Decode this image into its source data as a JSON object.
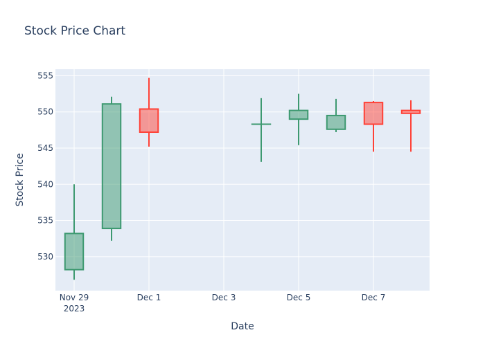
{
  "chart_data": {
    "type": "candlestick",
    "title": "Stock Price Chart",
    "xlabel": "Date",
    "ylabel": "Stock Price",
    "ylim": [
      525.3,
      555.9
    ],
    "xlim": [
      "2023-11-28T12:00",
      "2023-12-08T12:00"
    ],
    "y_ticks": [
      530,
      535,
      540,
      545,
      550,
      555
    ],
    "x_ticks": [
      {
        "date": "2023-11-29",
        "label": "Nov 29",
        "sublabel": "2023"
      },
      {
        "date": "2023-12-01",
        "label": "Dec 1",
        "sublabel": ""
      },
      {
        "date": "2023-12-03",
        "label": "Dec 3",
        "sublabel": ""
      },
      {
        "date": "2023-12-05",
        "label": "Dec 5",
        "sublabel": ""
      },
      {
        "date": "2023-12-07",
        "label": "Dec 7",
        "sublabel": ""
      }
    ],
    "grid": true,
    "colors": {
      "increasing_line": "#3d9970",
      "increasing_fill": "rgba(61,153,112,0.5)",
      "decreasing_line": "#ff4136",
      "decreasing_fill": "rgba(255,65,54,0.5)",
      "plot_bg": "#e5ecf6",
      "grid": "#ffffff",
      "text": "#2a3f5f"
    },
    "candles": [
      {
        "date": "2023-11-29",
        "open": 528.2,
        "high": 540.0,
        "low": 526.8,
        "close": 533.2
      },
      {
        "date": "2023-11-30",
        "open": 533.9,
        "high": 552.1,
        "low": 532.2,
        "close": 551.1
      },
      {
        "date": "2023-12-01",
        "open": 550.4,
        "high": 554.7,
        "low": 545.2,
        "close": 547.2
      },
      {
        "date": "2023-12-04",
        "open": 548.3,
        "high": 551.9,
        "low": 543.1,
        "close": 548.3
      },
      {
        "date": "2023-12-05",
        "open": 549.0,
        "high": 552.5,
        "low": 545.4,
        "close": 550.2
      },
      {
        "date": "2023-12-06",
        "open": 547.6,
        "high": 551.8,
        "low": 547.2,
        "close": 549.5
      },
      {
        "date": "2023-12-07",
        "open": 551.3,
        "high": 551.5,
        "low": 544.5,
        "close": 548.3
      },
      {
        "date": "2023-12-08",
        "open": 550.2,
        "high": 551.6,
        "low": 544.5,
        "close": 549.8
      }
    ]
  }
}
